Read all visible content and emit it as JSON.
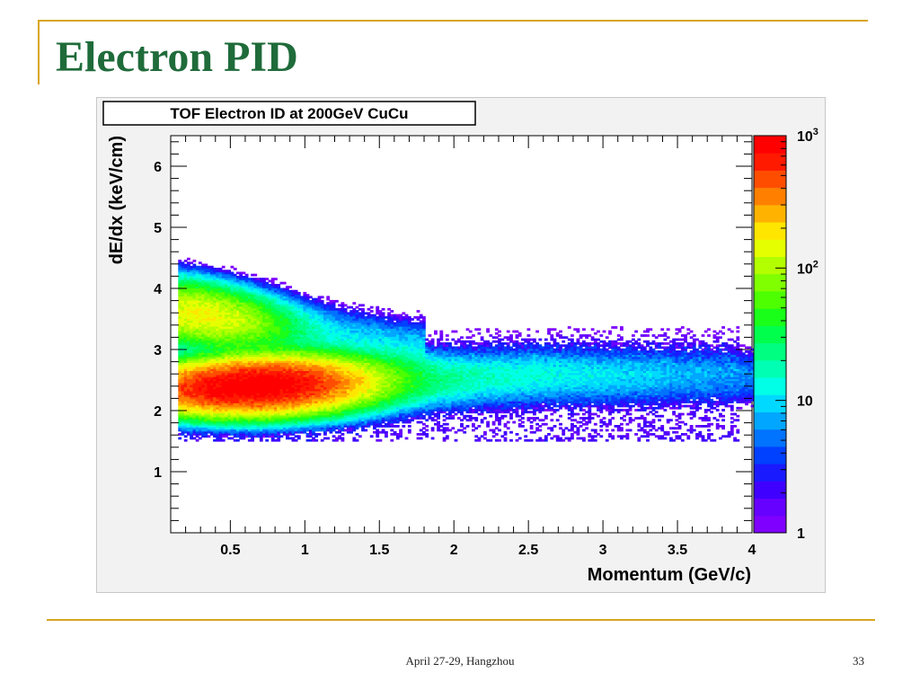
{
  "slide": {
    "title": "Electron PID",
    "footer": "April 27-29, Hangzhou",
    "page_number": "33"
  },
  "chart_data": {
    "type": "heatmap",
    "title": "TOF Electron ID at 200GeV CuCu",
    "xlabel": "Momentum (GeV/c)",
    "ylabel": "dE/dx (keV/cm)",
    "xlim": [
      0.1,
      4.0
    ],
    "ylim": [
      0,
      6.5
    ],
    "xticks": [
      {
        "value": 0.5,
        "label": "0.5"
      },
      {
        "value": 1,
        "label": "1"
      },
      {
        "value": 1.5,
        "label": "1.5"
      },
      {
        "value": 2,
        "label": "2"
      },
      {
        "value": 2.5,
        "label": "2.5"
      },
      {
        "value": 3,
        "label": "3"
      },
      {
        "value": 3.5,
        "label": "3.5"
      },
      {
        "value": 4,
        "label": "4"
      }
    ],
    "yticks": [
      {
        "value": 1,
        "label": "1"
      },
      {
        "value": 2,
        "label": "2"
      },
      {
        "value": 3,
        "label": "3"
      },
      {
        "value": 4,
        "label": "4"
      },
      {
        "value": 5,
        "label": "5"
      },
      {
        "value": 6,
        "label": "6"
      }
    ],
    "colorbar": {
      "scale": "log",
      "range": [
        1,
        1000
      ],
      "ticks": [
        {
          "value": 1,
          "base": "1",
          "exp": ""
        },
        {
          "value": 10,
          "base": "10",
          "exp": ""
        },
        {
          "value": 100,
          "base": "10",
          "exp": "2"
        },
        {
          "value": 1000,
          "base": "10",
          "exp": "3"
        }
      ],
      "colors": [
        "#7f00ff",
        "#6600ff",
        "#4000ff",
        "#1a1aff",
        "#0040ff",
        "#0073ff",
        "#00a6ff",
        "#00d9ff",
        "#00ffe6",
        "#00ffb3",
        "#00ff80",
        "#00ff4d",
        "#1aff1a",
        "#4dff00",
        "#80ff00",
        "#b3ff00",
        "#e6ff00",
        "#ffe600",
        "#ffb300",
        "#ff8000",
        "#ff4d00",
        "#ff1a00",
        "#ff0000"
      ]
    },
    "bands": [
      {
        "name": "electron",
        "x": [
          0.15,
          4.0
        ],
        "dedx_center": [
          2.35,
          2.55
        ],
        "peak_x": 0.65,
        "peak_counts": 1000
      },
      {
        "name": "pion",
        "x": [
          0.15,
          1.8
        ],
        "dedx_center": [
          3.6,
          3.05
        ],
        "peak_x": 0.3,
        "peak_counts": 150
      }
    ]
  }
}
